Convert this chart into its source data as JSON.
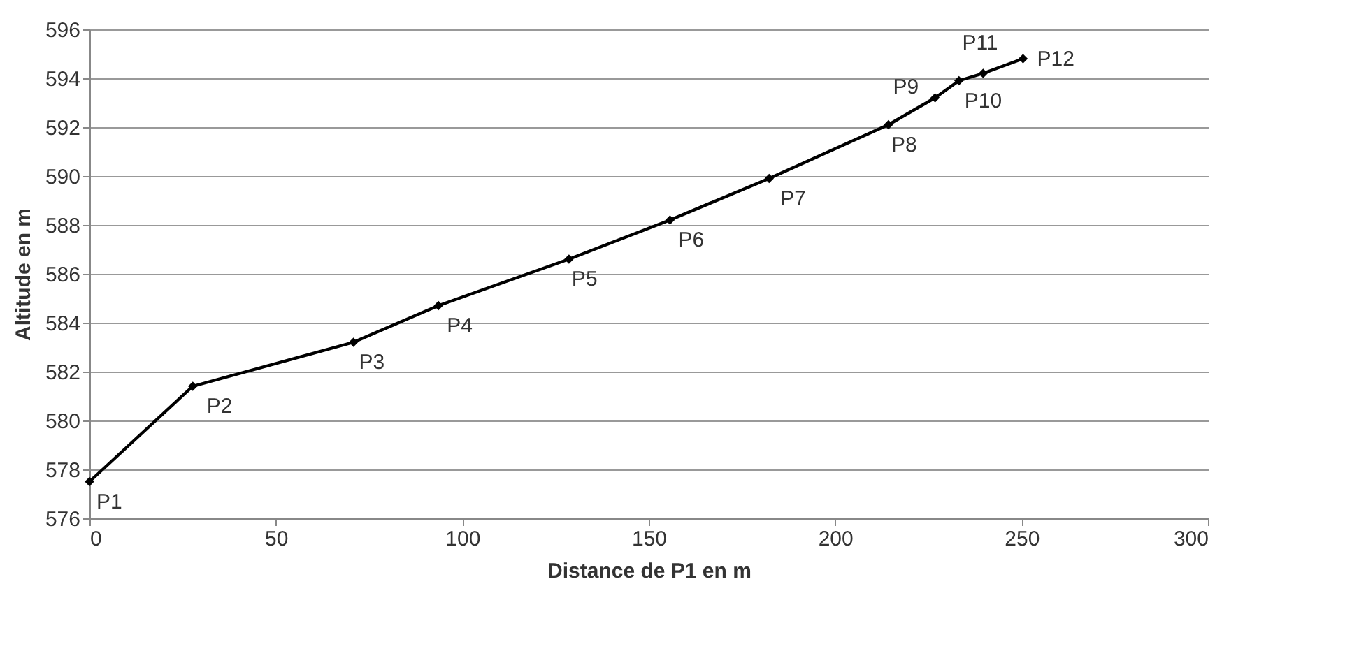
{
  "chart_data": {
    "type": "line",
    "xlabel": "Distance de P1 en m",
    "ylabel": "Altitude en m",
    "x": [
      0,
      27.7,
      70.8,
      93.6,
      128.6,
      155.7,
      182.3,
      214.3,
      226.8,
      233.2,
      239.7,
      250.4
    ],
    "series": [
      {
        "color": "#000000",
        "values": [
          577.5,
          581.4,
          583.2,
          584.7,
          586.6,
          588.2,
          589.9,
          592.1,
          593.2,
          593.9,
          594.2,
          594.8
        ]
      }
    ],
    "xlim": [
      0,
      300
    ],
    "xticks": [
      0,
      50,
      100,
      150,
      200,
      250,
      300
    ],
    "ylim": [
      576,
      596
    ],
    "yticks": [
      576,
      578,
      580,
      582,
      584,
      586,
      588,
      590,
      592,
      594,
      596
    ],
    "grid": "y",
    "marker": "diamond",
    "line_style": "solid",
    "annotations": [
      {
        "text": "P1",
        "x": 0,
        "y": 577.5
      },
      {
        "text": "P2",
        "x": 27.7,
        "y": 581.4
      },
      {
        "text": "P3",
        "x": 70.8,
        "y": 583.2
      },
      {
        "text": "P4",
        "x": 93.6,
        "y": 584.7
      },
      {
        "text": "P5",
        "x": 128.6,
        "y": 586.6
      },
      {
        "text": "P6",
        "x": 155.7,
        "y": 588.2
      },
      {
        "text": "P7",
        "x": 182.3,
        "y": 589.9
      },
      {
        "text": "P8",
        "x": 214.3,
        "y": 592.1
      },
      {
        "text": "P9",
        "x": 226.8,
        "y": 593.2
      },
      {
        "text": "P10",
        "x": 233.2,
        "y": 593.9
      },
      {
        "text": "P11",
        "x": 239.7,
        "y": 594.2
      },
      {
        "text": "P12",
        "x": 250.4,
        "y": 594.8
      }
    ]
  }
}
